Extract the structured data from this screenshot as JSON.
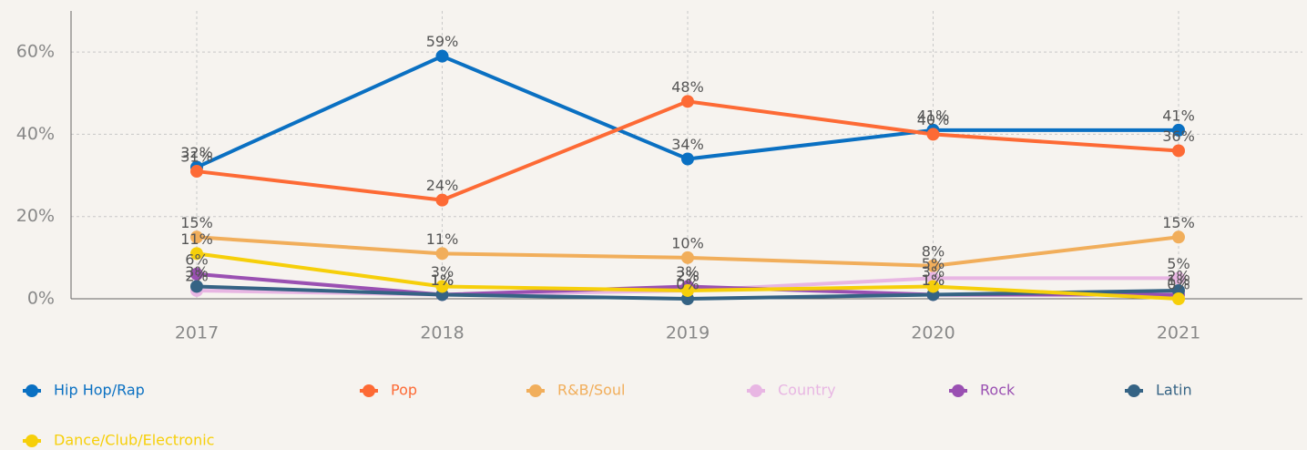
{
  "chart_data": {
    "type": "line",
    "categories": [
      "2017",
      "2018",
      "2019",
      "2020",
      "2021"
    ],
    "ylim": [
      0,
      70
    ],
    "yticks": [
      {
        "value": 0,
        "label": "0%"
      },
      {
        "value": 20,
        "label": "20%"
      },
      {
        "value": 40,
        "label": "40%"
      },
      {
        "value": 60,
        "label": "60%"
      }
    ],
    "grid": true,
    "legend": "bottom",
    "series": [
      {
        "name": "Hip Hop/Rap",
        "color": "#0a70c2",
        "values": [
          32,
          59,
          34,
          41,
          41
        ],
        "value_labels": [
          "32%",
          "59%",
          "34%",
          "41%",
          "41%"
        ]
      },
      {
        "name": "Pop",
        "color": "#fd6a35",
        "values": [
          31,
          24,
          48,
          40,
          36
        ],
        "value_labels": [
          "31%",
          "24%",
          "48%",
          "40%",
          "36%"
        ]
      },
      {
        "name": "R&B/Soul",
        "color": "#f1ae5b",
        "values": [
          15,
          11,
          10,
          8,
          15
        ],
        "value_labels": [
          "15%",
          "11%",
          "10%",
          "8%",
          "15%"
        ]
      },
      {
        "name": "Country",
        "color": "#e8b6e3",
        "values": [
          2,
          1,
          2,
          5,
          5
        ],
        "value_labels": [
          "2%",
          "1%",
          "2%",
          "5%",
          "5%"
        ]
      },
      {
        "name": "Rock",
        "color": "#9a50b2",
        "values": [
          6,
          1,
          3,
          1,
          1
        ],
        "value_labels": [
          "6%",
          "1%",
          "3%",
          "1%",
          "1%"
        ]
      },
      {
        "name": "Latin",
        "color": "#356384",
        "values": [
          3,
          1,
          0,
          1,
          2
        ],
        "value_labels": [
          "3%",
          "1%",
          "0%",
          "1%",
          "2%"
        ]
      },
      {
        "name": "Dance/Club/Electronic",
        "color": "#f6cf0a",
        "values": [
          11,
          3,
          2,
          3,
          0
        ],
        "value_labels": [
          "11%",
          "3%",
          "2%",
          "3%",
          "0%"
        ]
      }
    ]
  }
}
